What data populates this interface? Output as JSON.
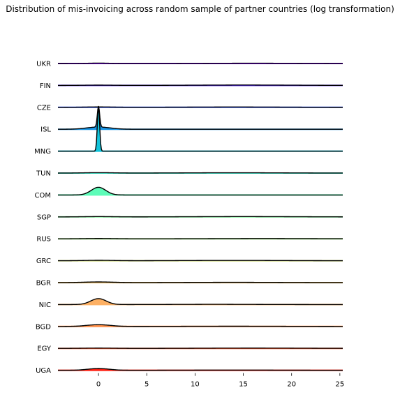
{
  "chart_data": {
    "type": "ridgeline",
    "title": "Distribution of mis-invoicing across random sample of partner countries (log transformation)",
    "xlabel": "",
    "ylabel": "",
    "xlim": [
      -4.2,
      25.3
    ],
    "xticks": [
      0,
      5,
      10,
      15,
      20,
      25
    ],
    "grid": false,
    "colormap": "rainbow",
    "series": [
      {
        "name": "UKR",
        "color": "#8000ff",
        "components": [
          [
            0,
            1.2,
            0.55
          ],
          [
            16,
            5,
            0.4
          ]
        ]
      },
      {
        "name": "FIN",
        "color": "#5a2dfc",
        "components": [
          [
            0,
            1.5,
            0.4
          ],
          [
            15,
            5,
            0.55
          ]
        ]
      },
      {
        "name": "CZE",
        "color": "#3259f3",
        "components": [
          [
            0,
            1.5,
            0.55
          ],
          [
            14,
            5,
            0.45
          ]
        ]
      },
      {
        "name": "ISL",
        "color": "#1996e6",
        "components": [
          [
            0,
            1.2,
            3.2
          ],
          [
            0,
            0.12,
            30
          ]
        ]
      },
      {
        "name": "MNG",
        "color": "#12c4db",
        "components": [
          [
            0,
            0.12,
            64
          ]
        ]
      },
      {
        "name": "TUN",
        "color": "#3ae4c8",
        "components": [
          [
            0,
            1.5,
            0.6
          ],
          [
            14,
            5,
            0.45
          ]
        ]
      },
      {
        "name": "COM",
        "color": "#5dfcb8",
        "components": [
          [
            0,
            0.75,
            11
          ]
        ]
      },
      {
        "name": "SGP",
        "color": "#84fca0",
        "components": [
          [
            0,
            1.5,
            0.45
          ],
          [
            15,
            5,
            0.45
          ]
        ]
      },
      {
        "name": "RUS",
        "color": "#a8ee8c",
        "components": [
          [
            0,
            1.5,
            0.45
          ],
          [
            17,
            5,
            0.35
          ]
        ]
      },
      {
        "name": "GRC",
        "color": "#cbd471",
        "components": [
          [
            0,
            1.5,
            0.6
          ],
          [
            14,
            5,
            0.45
          ]
        ]
      },
      {
        "name": "BGR",
        "color": "#e6b65c",
        "components": [
          [
            0,
            1.5,
            1.0
          ],
          [
            14,
            5,
            0.4
          ]
        ]
      },
      {
        "name": "NIC",
        "color": "#fdb063",
        "components": [
          [
            0,
            0.8,
            8.5
          ],
          [
            12,
            4,
            0.3
          ]
        ]
      },
      {
        "name": "BGD",
        "color": "#ff8f48",
        "components": [
          [
            0,
            1.2,
            2.6
          ],
          [
            14,
            5,
            0.3
          ]
        ]
      },
      {
        "name": "EGY",
        "color": "#ff582b",
        "components": [
          [
            0,
            1.5,
            0.45
          ],
          [
            16,
            5,
            0.45
          ]
        ]
      },
      {
        "name": "UGA",
        "color": "#ff1c0e",
        "components": [
          [
            0,
            1.1,
            2.6
          ],
          [
            14,
            5,
            0.3
          ]
        ]
      }
    ]
  }
}
